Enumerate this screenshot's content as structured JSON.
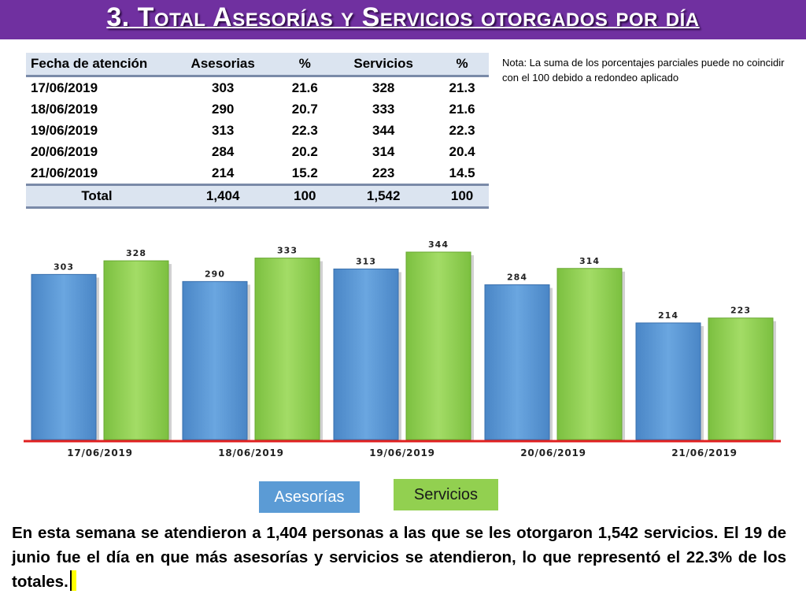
{
  "title": "3.  Total Asesorías y Servicios otorgados por día",
  "table": {
    "headers": [
      "Fecha de atención",
      "Asesorias",
      "%",
      "Servicios",
      "%"
    ],
    "rows": [
      [
        "17/06/2019",
        "303",
        "21.6",
        "328",
        "21.3"
      ],
      [
        "18/06/2019",
        "290",
        "20.7",
        "333",
        "21.6"
      ],
      [
        "19/06/2019",
        "313",
        "22.3",
        "344",
        "22.3"
      ],
      [
        "20/06/2019",
        "284",
        "20.2",
        "314",
        "20.4"
      ],
      [
        "21/06/2019",
        "214",
        "15.2",
        "223",
        "14.5"
      ]
    ],
    "total": [
      "Total",
      "1,404",
      "100",
      "1,542",
      "100"
    ]
  },
  "note": "Nota: La suma de los porcentajes parciales puede no coincidir con el 100 debido a redondeo aplicado",
  "colors": {
    "title_bg": "#7030a0",
    "asesorias": "#5b9bd5",
    "servicios": "#92d050",
    "axis": "#e02020"
  },
  "chart_data": {
    "type": "bar",
    "categories": [
      "17/06/2019",
      "18/06/2019",
      "19/06/2019",
      "20/06/2019",
      "21/06/2019"
    ],
    "series": [
      {
        "name": "Asesorías",
        "values": [
          303,
          290,
          313,
          284,
          214
        ]
      },
      {
        "name": "Servicios",
        "values": [
          328,
          333,
          344,
          314,
          223
        ]
      }
    ],
    "title": "",
    "xlabel": "",
    "ylabel": "",
    "ylim": [
      0,
      350
    ],
    "grid": false,
    "legend": "bottom"
  },
  "legend": {
    "asesorias": "Asesorías",
    "servicios": "Servicios"
  },
  "summary": "En esta semana se atendieron a 1,404 personas a las que se les otorgaron 1,542 servicios. El 19 de junio fue el día en que más asesorías y servicios se atendieron, lo que representó  el 22.3% de los totales."
}
